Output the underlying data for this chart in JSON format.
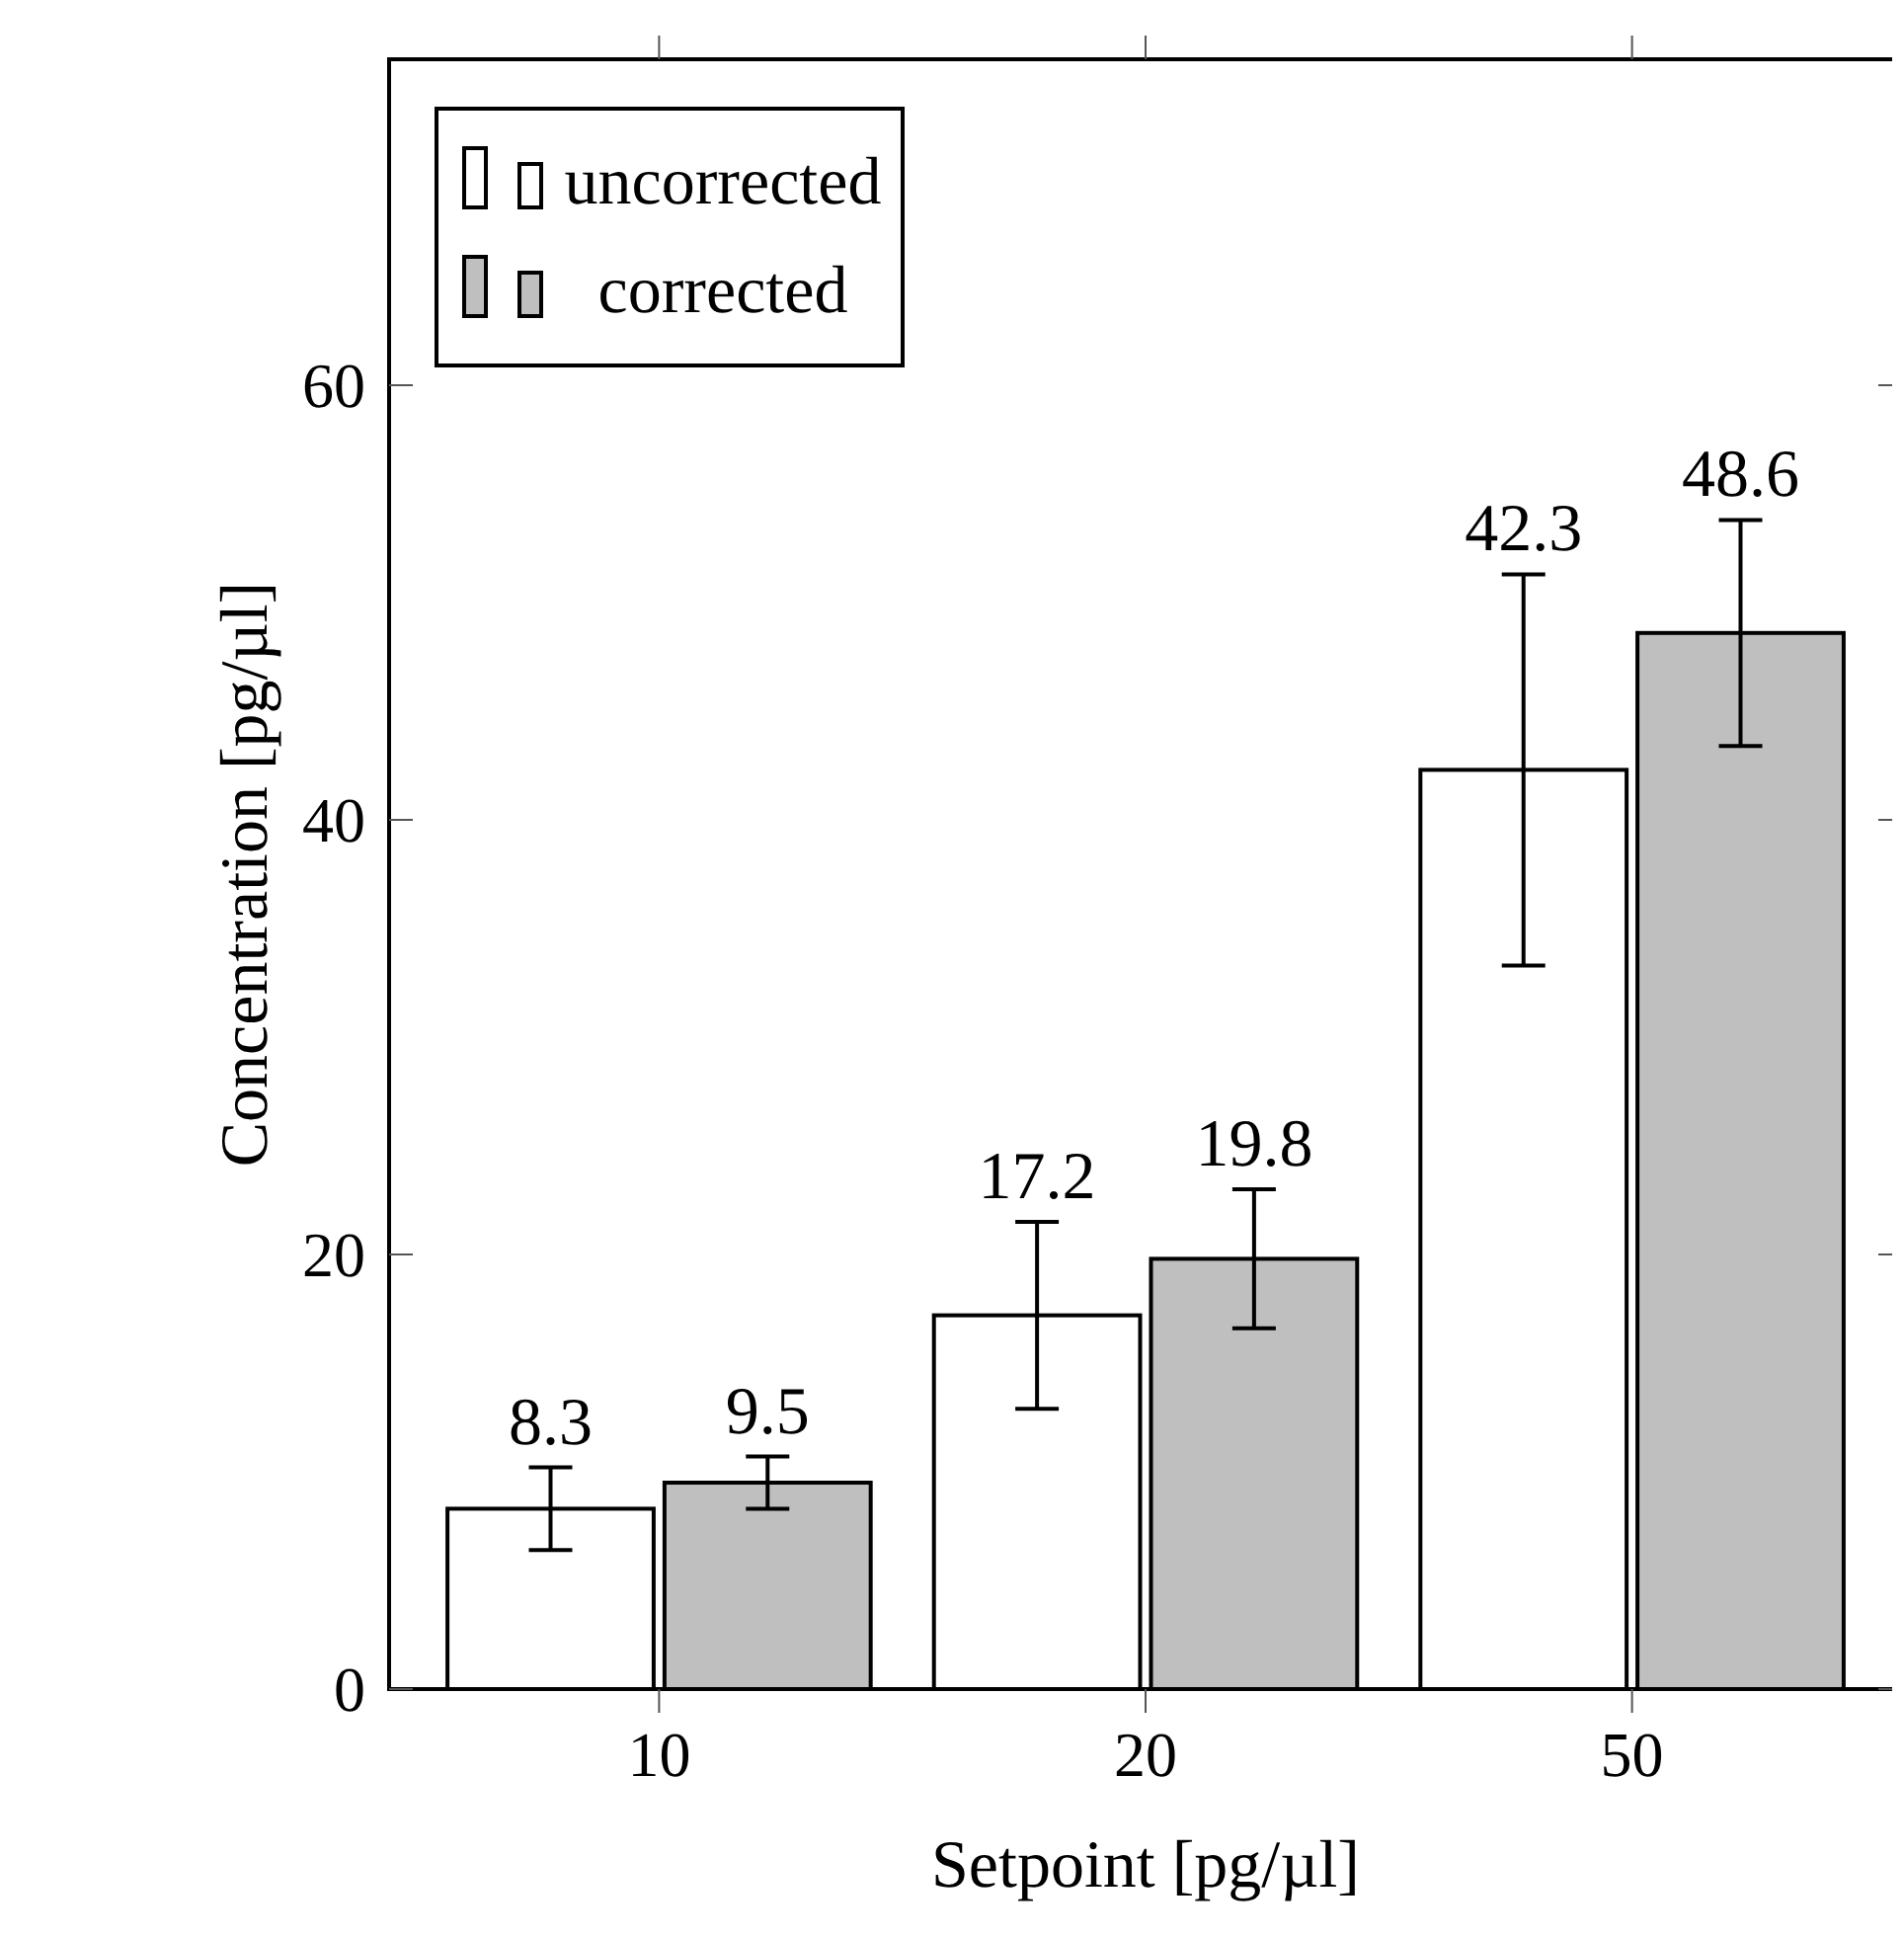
{
  "chart_data": {
    "type": "bar",
    "xlabel": "Setpoint [pg/µl]",
    "ylabel": "Concentration [pg/µl]",
    "categories": [
      "10",
      "20",
      "50"
    ],
    "series": [
      {
        "name": "uncorrected",
        "color": "#ffffff",
        "values": [
          8.3,
          17.2,
          42.3
        ],
        "errors": [
          1.9,
          4.3,
          9.0
        ]
      },
      {
        "name": "corrected",
        "color": "#bfbfbf",
        "values": [
          9.5,
          19.8,
          48.6
        ],
        "errors": [
          1.2,
          3.2,
          5.2
        ]
      }
    ],
    "ylim": [
      0,
      75
    ],
    "yticks": [
      0,
      20,
      40,
      60
    ],
    "data_labels": true,
    "legend": "top left",
    "grid": false
  }
}
